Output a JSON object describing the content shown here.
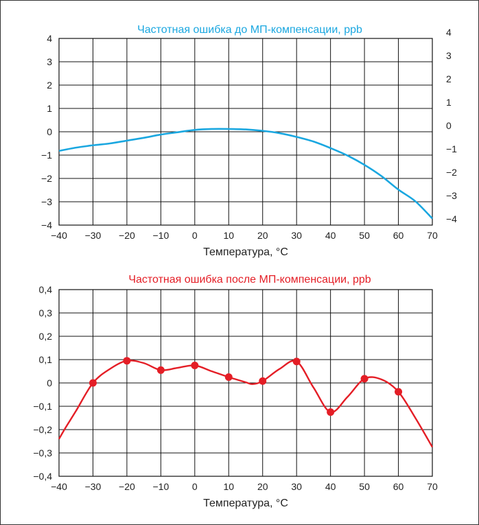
{
  "chart_data": [
    {
      "type": "line",
      "title": "Частотная ошибка до МП-компенсации, ppb",
      "xlabel": "Температура, °C",
      "ylabel": "",
      "color": "#1aa7e0",
      "xlim": [
        -40,
        70
      ],
      "ylim": [
        -4,
        4
      ],
      "grid": true,
      "x_ticks": [
        "−40",
        "−30",
        "−20",
        "−10",
        "0",
        "10",
        "20",
        "30",
        "40",
        "50",
        "60",
        "70"
      ],
      "y_ticks_left": [
        "4",
        "3",
        "2",
        "1",
        "0",
        "−1",
        "−2",
        "−3",
        "−4"
      ],
      "y_ticks_right": [
        "4",
        "3",
        "2",
        "1",
        "0",
        "−1",
        "−2",
        "−3",
        "−4"
      ],
      "series": [
        {
          "x": [
            -40,
            -35,
            -30,
            -25,
            -20,
            -15,
            -10,
            -5,
            0,
            5,
            10,
            15,
            20,
            25,
            30,
            35,
            40,
            45,
            50,
            55,
            60,
            65,
            70
          ],
          "y": [
            -0.82,
            -0.68,
            -0.58,
            -0.5,
            -0.38,
            -0.26,
            -0.12,
            -0.02,
            0.08,
            0.12,
            0.12,
            0.1,
            0.04,
            -0.06,
            -0.22,
            -0.42,
            -0.7,
            -1.02,
            -1.42,
            -1.9,
            -2.48,
            -2.98,
            -3.72
          ]
        }
      ]
    },
    {
      "type": "line",
      "title": "Частотная ошибка после МП-компенсации, ppb",
      "xlabel": "Температура, °C",
      "ylabel": "",
      "color": "#e41e26",
      "xlim": [
        -40,
        70
      ],
      "ylim": [
        -0.4,
        0.4
      ],
      "grid": true,
      "x_ticks": [
        "−40",
        "−30",
        "−20",
        "−10",
        "0",
        "10",
        "20",
        "30",
        "40",
        "50",
        "60",
        "70"
      ],
      "y_ticks_left": [
        "0,4",
        "0,3",
        "0,2",
        "0,1",
        "0",
        "−0,1",
        "−0,2",
        "−0,3",
        "−0,4"
      ],
      "markers": {
        "x": [
          -30,
          -20,
          -10,
          0,
          10,
          20,
          30,
          40,
          50,
          60
        ],
        "y": [
          0.0,
          0.095,
          0.055,
          0.075,
          0.025,
          0.008,
          0.092,
          -0.125,
          0.018,
          -0.038
        ]
      },
      "series": [
        {
          "x": [
            -40,
            -38,
            -35,
            -30,
            -25,
            -20,
            -15,
            -10,
            -5,
            0,
            5,
            10,
            15,
            17,
            20,
            25,
            30,
            35,
            40,
            45,
            50,
            55,
            60,
            65,
            70
          ],
          "y": [
            -0.24,
            -0.19,
            -0.12,
            0.0,
            0.06,
            0.095,
            0.085,
            0.055,
            0.065,
            0.075,
            0.05,
            0.025,
            0.003,
            -0.005,
            0.008,
            0.06,
            0.092,
            -0.02,
            -0.125,
            -0.06,
            0.018,
            0.015,
            -0.038,
            -0.15,
            -0.275
          ]
        }
      ]
    }
  ]
}
